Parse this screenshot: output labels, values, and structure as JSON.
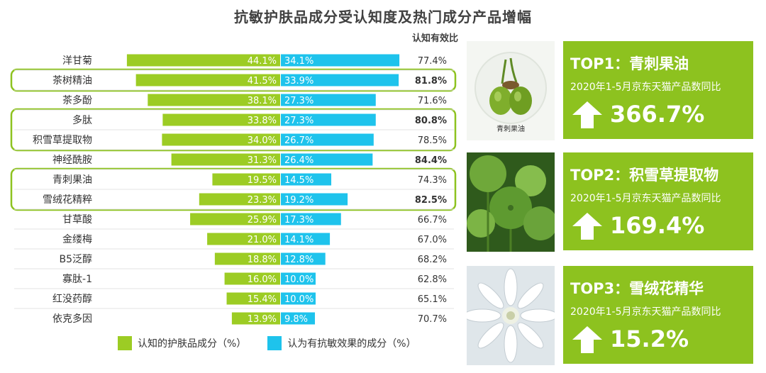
{
  "title": "抗敏护肤品成分受认知度及热门成分产品增幅",
  "colors": {
    "recognized": "#9ccc24",
    "antiallergy": "#1ec3ec",
    "card": "#8dc21f",
    "outline": "#8dc21f"
  },
  "chart_data": {
    "type": "bar",
    "orientation": "horizontal-diverging",
    "categories": [
      "洋甘菊",
      "茶树精油",
      "茶多酚",
      "多肽",
      "积雪草提取物",
      "神经酰胺",
      "青刺果油",
      "雪绒花精粹",
      "甘草酸",
      "金缕梅",
      "B5泛醇",
      "寡肽-1",
      "红没药醇",
      "依克多因"
    ],
    "series": [
      {
        "name": "认知的护肤品成分（%）",
        "values": [
          44.1,
          41.5,
          38.1,
          33.8,
          34.0,
          31.3,
          19.5,
          23.3,
          25.9,
          21.0,
          18.8,
          16.0,
          15.4,
          13.9
        ],
        "labels": [
          "44.1%",
          "41.5%",
          "38.1%",
          "33.8%",
          "34.0%",
          "31.3%",
          "19.5%",
          "23.3%",
          "25.9%",
          "21.0%",
          "18.8%",
          "16.0%",
          "15.4%",
          "13.9%"
        ]
      },
      {
        "name": "认为有抗敏效果的成分（%）",
        "values": [
          34.1,
          33.9,
          27.3,
          27.3,
          26.7,
          26.4,
          14.5,
          19.2,
          17.3,
          14.1,
          12.8,
          10.0,
          10.0,
          9.8
        ],
        "labels": [
          "34.1%",
          "33.9%",
          "27.3%",
          "27.3%",
          "26.7%",
          "26.4%",
          "14.5%",
          "19.2%",
          "17.3%",
          "14.1%",
          "12.8%",
          "10.0%",
          "10.0%",
          "9.8%"
        ]
      }
    ],
    "ratio": {
      "header": "认知有效比",
      "labels": [
        "77.4%",
        "81.8%",
        "71.6%",
        "80.8%",
        "78.5%",
        "84.4%",
        "74.3%",
        "82.5%",
        "66.7%",
        "67.0%",
        "68.2%",
        "62.8%",
        "65.1%",
        "70.7%"
      ],
      "bold": [
        false,
        true,
        false,
        true,
        false,
        true,
        false,
        true,
        false,
        false,
        false,
        false,
        false,
        false
      ]
    },
    "highlight_groups": [
      [
        1,
        1
      ],
      [
        3,
        4
      ],
      [
        6,
        7
      ]
    ]
  },
  "legend": {
    "recognized": "认知的护肤品成分（%）",
    "antiallergy": "认为有抗敏效果的成分（%）"
  },
  "cards": [
    {
      "photo": "green-berry-photo",
      "caption": "青刺果油",
      "title": "TOP1：青刺果油",
      "subtitle": "2020年1-5月京东天猫产品数同比",
      "growth": "366.7%"
    },
    {
      "photo": "centella-leaves-photo",
      "caption": "",
      "title": "TOP2：积雪草提取物",
      "subtitle": "2020年1-5月京东天猫产品数同比",
      "growth": "169.4%"
    },
    {
      "photo": "edelweiss-flower-photo",
      "caption": "",
      "title": "TOP3：雪绒花精华",
      "subtitle": "2020年1-5月京东天猫产品数同比",
      "growth": "15.2%"
    }
  ]
}
